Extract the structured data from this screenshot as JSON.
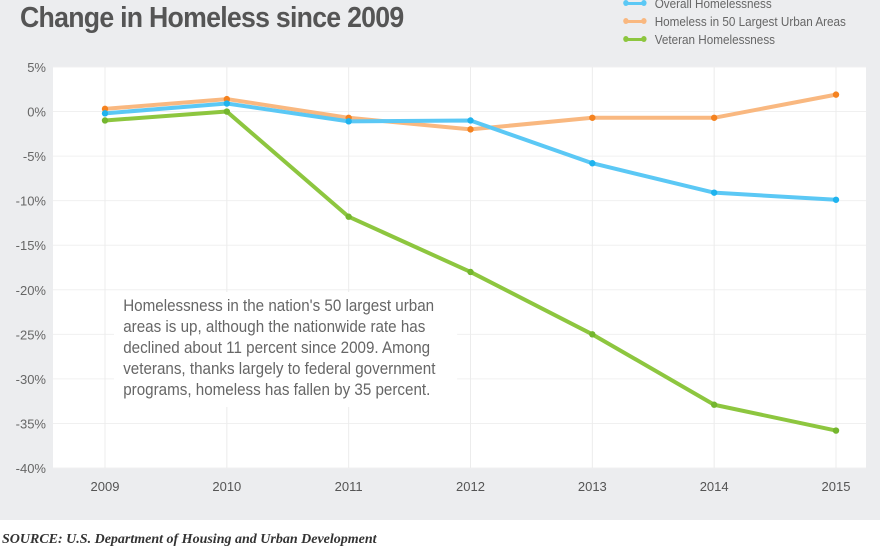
{
  "title": "Change in Homeless since 2009",
  "source": "SOURCE: U.S. Department of Housing and Urban Development",
  "chart_data": {
    "type": "line",
    "title": "Change in Homeless since 2009",
    "x": [
      "2009",
      "2010",
      "2011",
      "2012",
      "2013",
      "2014",
      "2015"
    ],
    "ylim": [
      -40,
      5
    ],
    "yticks": [
      5,
      0,
      -5,
      -10,
      -15,
      -20,
      -25,
      -30,
      -35,
      -40
    ],
    "ytick_labels": [
      "5%",
      "0%",
      "-5%",
      "-10%",
      "-15%",
      "-20%",
      "-25%",
      "-30%",
      "-35%",
      "-40%"
    ],
    "grid": true,
    "legend_placement": "top-right",
    "series": [
      {
        "name": "Overall Homelessness",
        "color": "#5bc8f5",
        "dot": "#1fb3ee",
        "values": [
          -0.2,
          0.9,
          -1.1,
          -1.0,
          -5.8,
          -9.1,
          -9.9
        ]
      },
      {
        "name": "Homeless in 50 Largest Urban Areas",
        "color": "#f9b880",
        "dot": "#f5821f",
        "values": [
          0.3,
          1.4,
          -0.7,
          -2.0,
          -0.7,
          -0.7,
          1.9
        ]
      },
      {
        "name": "Veteran Homelessness",
        "color": "#8dc63f",
        "dot": "#74b62e",
        "values": [
          -1.0,
          0.0,
          -11.8,
          -18.0,
          -25.0,
          -32.9,
          -35.8
        ]
      }
    ],
    "annotation": "Homelessness in the nation's 50 largest urban areas is up, although the nationwide rate has declined about 11 percent since 2009. Among veterans, thanks largely to federal government programs, homeless has fallen by 35 percent."
  }
}
